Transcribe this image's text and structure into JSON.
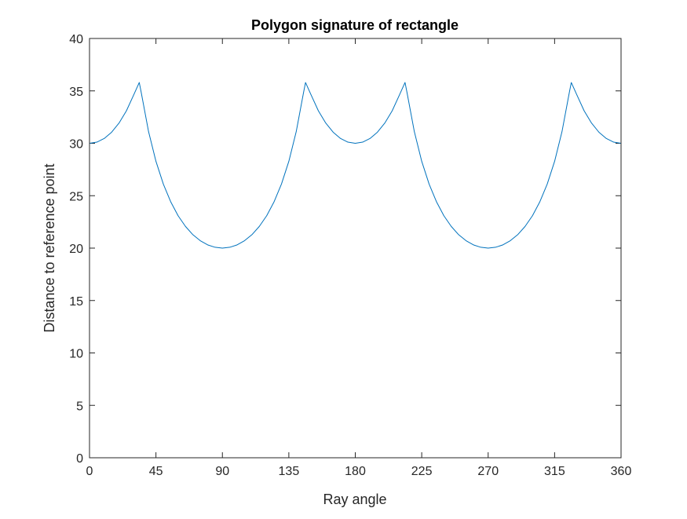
{
  "chart_data": {
    "type": "line",
    "title": "Polygon signature of rectangle",
    "xlabel": "Ray angle",
    "ylabel": "Distance to reference point",
    "xlim": [
      0,
      360
    ],
    "ylim": [
      0,
      40
    ],
    "xticks": [
      0,
      45,
      90,
      135,
      180,
      225,
      270,
      315,
      360
    ],
    "yticks": [
      0,
      5,
      10,
      15,
      20,
      25,
      30,
      35,
      40
    ],
    "grid": false,
    "legend": "none",
    "series": [
      {
        "color": "#0072BD",
        "x": [
          0,
          5,
          10,
          15,
          20,
          25,
          30,
          33.7,
          35,
          40,
          45,
          50,
          55,
          60,
          65,
          70,
          75,
          80,
          85,
          90,
          95,
          100,
          105,
          110,
          115,
          120,
          125,
          130,
          135,
          140,
          145,
          146.3,
          150,
          155,
          160,
          165,
          170,
          175,
          180,
          185,
          190,
          195,
          200,
          205,
          210,
          213.7,
          215,
          220,
          225,
          230,
          235,
          240,
          245,
          250,
          255,
          260,
          265,
          270,
          275,
          280,
          285,
          290,
          295,
          300,
          305,
          310,
          315,
          320,
          325,
          326.3,
          330,
          335,
          340,
          345,
          350,
          355,
          360
        ],
        "y": [
          30.0,
          30.11,
          30.46,
          31.06,
          31.93,
          33.1,
          34.64,
          35.8,
          34.87,
          31.11,
          28.28,
          26.11,
          24.42,
          23.09,
          22.07,
          21.28,
          20.71,
          20.31,
          20.08,
          20.0,
          20.08,
          20.31,
          20.71,
          21.28,
          22.07,
          23.09,
          24.42,
          26.11,
          28.28,
          31.11,
          34.87,
          35.8,
          34.64,
          33.1,
          31.93,
          31.06,
          30.46,
          30.11,
          30.0,
          30.11,
          30.46,
          31.06,
          31.93,
          33.1,
          34.64,
          35.8,
          34.87,
          31.11,
          28.28,
          26.11,
          24.42,
          23.09,
          22.07,
          21.28,
          20.71,
          20.31,
          20.08,
          20.0,
          20.08,
          20.31,
          20.71,
          21.28,
          22.07,
          23.09,
          24.42,
          26.11,
          28.28,
          31.11,
          34.87,
          35.8,
          34.64,
          33.1,
          31.93,
          31.06,
          30.46,
          30.11,
          30.0
        ]
      }
    ]
  }
}
